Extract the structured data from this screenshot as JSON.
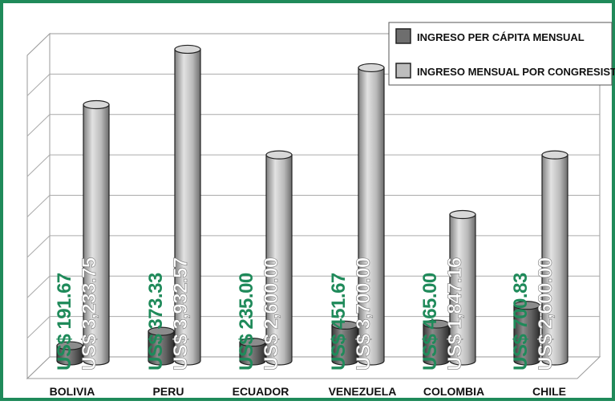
{
  "chart_data": {
    "type": "bar",
    "title": "",
    "xlabel": "",
    "ylabel": "",
    "categories": [
      "BOLIVIA",
      "PERU",
      "ECUADOR",
      "VENEZUELA",
      "COLOMBIA",
      "CHILE"
    ],
    "series": [
      {
        "name": "INGRESO PER CÁPITA MENSUAL",
        "values": [
          191.67,
          373.33,
          235.0,
          451.67,
          465.0,
          700.83
        ],
        "labels": [
          "US$ 191.67",
          "US$ 373.33",
          "US$ 235.00",
          "US$ 451.67",
          "US$ 465.00",
          "US$ 700.83"
        ]
      },
      {
        "name": "INGRESO MENSUAL POR CONGRESISTA",
        "values": [
          3233.75,
          3932.57,
          2600.0,
          3700.0,
          1847.16,
          2600.0
        ],
        "labels": [
          "US$ 3,233.75",
          "US$ 3,932.57",
          "US$ 2,600.00",
          "US$ 3,700.00",
          "US$ 1,847.16",
          "US$ 2,600.00"
        ]
      }
    ],
    "ylim": [
      0,
      4000
    ],
    "grid": true,
    "legend_position": "top-right",
    "colors": {
      "per_capita": "#6e6e6e",
      "congresista": "#bdbdbd",
      "per_capita_label": "#1f8a5a",
      "congresista_label": "#ffffff",
      "frame": "#1f8a5a"
    }
  }
}
